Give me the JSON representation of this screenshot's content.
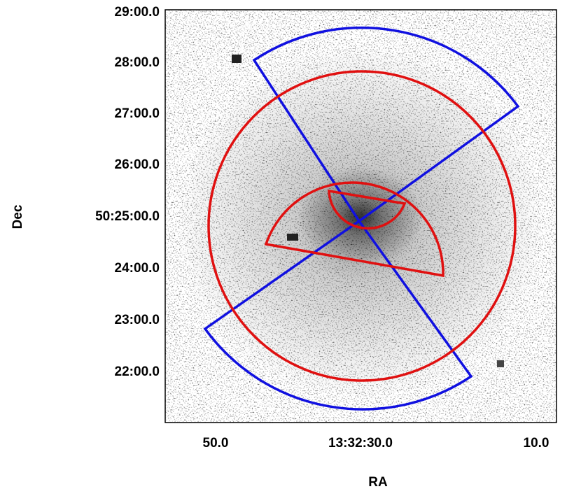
{
  "x_axis": {
    "label": "RA",
    "ticks": [
      "50.0",
      "13:32:30.0",
      "10.0"
    ]
  },
  "y_axis": {
    "label": "Dec",
    "ticks": [
      "29:00.0",
      "28:00.0",
      "27:00.0",
      "26:00.0",
      "50:25:00.0",
      "24:00.0",
      "23:00.0",
      "22:00.0"
    ]
  }
}
